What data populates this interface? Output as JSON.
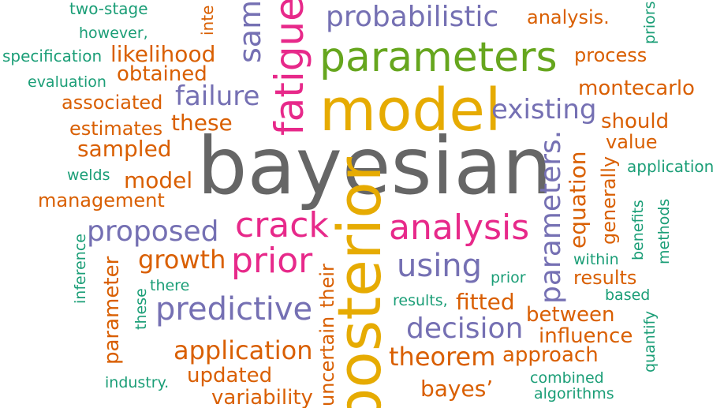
{
  "words": [
    "two-stage",
    "inte",
    "samp",
    "fatigue",
    "probabilistic",
    "analysis.",
    "priors",
    "however,",
    "specification",
    "likelihood",
    "parameters",
    "process",
    "evaluation",
    "obtained",
    "montecarlo",
    "associated",
    "failure",
    "model",
    "existing",
    "should",
    "estimates",
    "these",
    "value",
    "sampled",
    "bayesian",
    "application",
    "welds",
    "model",
    "parameters.",
    "equation",
    "generally",
    "management",
    "crack",
    "analysis",
    "posterior",
    "benefits",
    "methods",
    "inference",
    "proposed",
    "growth",
    "prior",
    "their",
    "uncertain",
    "using",
    "within",
    "prior",
    "results",
    "parameter",
    "there",
    "these",
    "predictive",
    "results,",
    "fitted",
    "based",
    "between",
    "quantify",
    "decision",
    "influence",
    "application",
    "theorem",
    "approach",
    "combined",
    "industry.",
    "updated",
    "bayes’",
    "algorithms",
    "variability"
  ]
}
